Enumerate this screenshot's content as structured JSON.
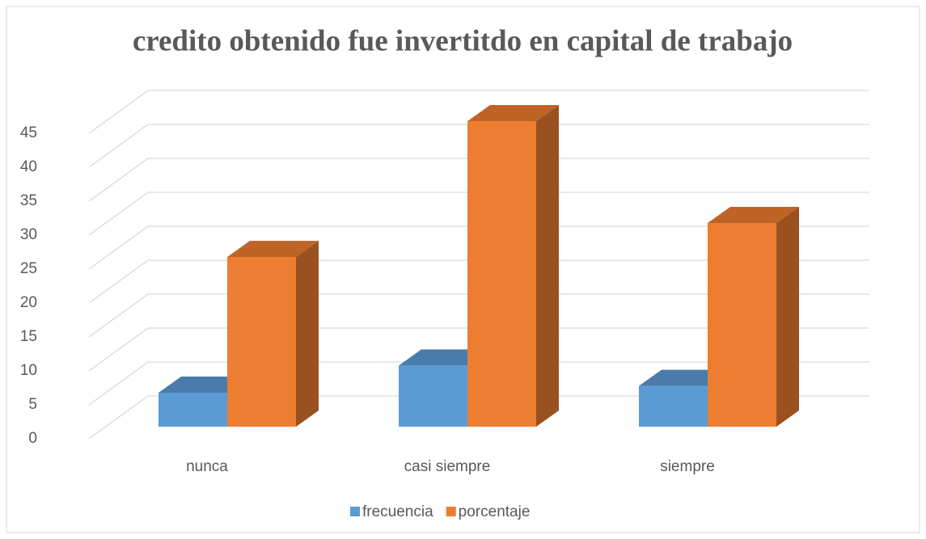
{
  "chart_data": {
    "type": "bar3d",
    "title": "credito obtenido fue invertitdo en capital de trabajo",
    "categories": [
      "nunca",
      "casi siempre",
      "siempre"
    ],
    "series": [
      {
        "name": "frecuencia",
        "color": "#5b9bd5",
        "values": [
          5,
          9,
          6
        ]
      },
      {
        "name": "porcentaje",
        "color": "#ed7d31",
        "values": [
          25,
          45,
          30
        ]
      }
    ],
    "ylim": [
      0,
      45
    ],
    "yticks": [
      0,
      5,
      10,
      15,
      20,
      25,
      30,
      35,
      40,
      45
    ],
    "grid": true,
    "legend": "bottom"
  }
}
